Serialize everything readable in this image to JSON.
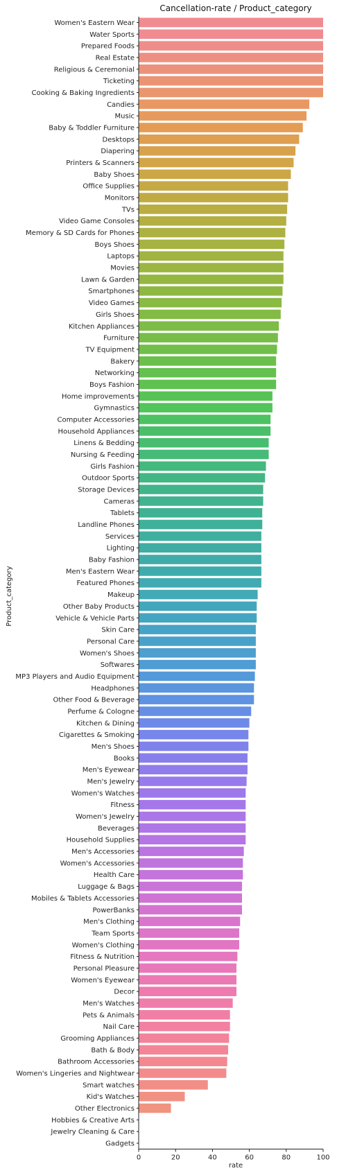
{
  "chart_data": {
    "type": "bar",
    "orientation": "horizontal",
    "title": "Cancellation-rate / Product_category",
    "xlabel": "rate",
    "ylabel": "Product_category",
    "xlim": [
      0,
      100
    ],
    "xticks": [
      0,
      20,
      40,
      60,
      80,
      100
    ],
    "grid": false,
    "categories": [
      "Women's Eastern Wear",
      "Water Sports",
      "Prepared Foods",
      "Real Estate",
      "Religious & Ceremonial",
      "Ticketing",
      "Cooking & Baking Ingredients",
      "Candies",
      "Music",
      "Baby & Toddler Furniture",
      "Desktops",
      "Diapering",
      "Printers & Scanners",
      "Baby Shoes",
      "Office Supplies",
      "Monitors",
      "TVs",
      "Video Game Consoles",
      "Memory & SD Cards for Phones",
      "Boys Shoes",
      "Laptops",
      "Movies",
      "Lawn & Garden",
      "Smartphones",
      "Video Games",
      "Girls Shoes",
      "Kitchen Appliances",
      "Furniture",
      "TV Equipment",
      "Bakery",
      "Networking",
      "Boys Fashion",
      "Home improvements",
      "Gymnastics",
      "Computer Accessories",
      "Household Appliances",
      "Linens & Bedding",
      "Nursing & Feeding",
      "Girls Fashion",
      "Outdoor Sports",
      "Storage Devices",
      "Cameras",
      "Tablets",
      "Landline Phones",
      "Services",
      "Lighting",
      "Baby Fashion",
      "Men's Eastern Wear",
      "Featured Phones",
      "Makeup",
      "Other Baby Products",
      "Vehicle & Vehicle Parts",
      "Skin Care",
      "Personal Care",
      "Women's Shoes",
      "Softwares",
      "MP3 Players and Audio Equipment",
      "Headphones",
      "Other Food & Beverage",
      "Perfume & Cologne",
      "Kitchen & Dining",
      "Cigarettes & Smoking",
      "Men's Shoes",
      "Books",
      "Men's Eyewear",
      "Men's Jewelry",
      "Women's Watches",
      "Fitness",
      "Women's Jewelry",
      "Beverages",
      "Household Supplies",
      "Men's Accessories",
      "Women's Accessories",
      "Health Care",
      "Luggage & Bags",
      "Mobiles & Tablets Accessories",
      "PowerBanks",
      "Men's Clothing",
      "Team Sports",
      "Women's Clothing",
      "Fitness & Nutrition",
      "Personal Pleasure",
      "Women's Eyewear",
      "Decor",
      "Men's Watches",
      "Pets & Animals",
      "Nail Care",
      "Grooming Appliances",
      "Bath & Body",
      "Bathroom Accessories",
      "Women's Lingeries and Nightwear",
      "Smart watches",
      "Kid's Watches",
      "Other Electronics",
      "Hobbies & Creative Arts",
      "Jewelry Cleaning & Care",
      "Gadgets"
    ],
    "values": [
      100,
      100,
      100,
      100,
      100,
      100,
      100,
      92.5,
      91,
      89,
      87,
      85,
      84,
      82.5,
      81,
      81,
      80.5,
      80,
      79.5,
      79,
      78.5,
      78.5,
      78.5,
      78,
      77.5,
      77,
      76,
      75.5,
      75,
      74.5,
      74.5,
      74.5,
      72.5,
      72.5,
      71.5,
      71.5,
      70.5,
      70.5,
      69,
      68.5,
      67.5,
      67.5,
      67,
      67,
      66.5,
      66.5,
      66.5,
      66.5,
      66.5,
      64.5,
      64,
      64,
      63.5,
      63.5,
      63.5,
      63.5,
      63,
      62.5,
      62.5,
      61,
      60,
      59.5,
      59.5,
      59,
      59,
      58.5,
      58,
      58,
      58,
      58,
      58,
      57,
      56.5,
      56.5,
      56,
      56,
      56,
      55,
      54.5,
      54.5,
      53.5,
      53,
      53,
      53,
      51,
      49.5,
      49.5,
      49,
      48.5,
      48,
      47.5,
      37.5,
      25,
      17.5,
      0,
      0,
      0
    ],
    "colors": [
      "#f08c91",
      "#f08c91",
      "#ef8d8a",
      "#ed9083",
      "#ec927c",
      "#eb9474",
      "#ea966d",
      "#e99864",
      "#e89a5c",
      "#e49c55",
      "#de9f50",
      "#d8a24c",
      "#d2a549",
      "#cca746",
      "#c6a944",
      "#c0ab43",
      "#baad42",
      "#b3af41",
      "#adb141",
      "#a7b341",
      "#a1b441",
      "#9bb642",
      "#95b742",
      "#8fb843",
      "#89ba44",
      "#83bb45",
      "#7dbc46",
      "#77bd48",
      "#71bf49",
      "#6bc04b",
      "#64c14d",
      "#5ec250",
      "#57c354",
      "#51c45a",
      "#4dc262",
      "#4abf69",
      "#47bd70",
      "#45bb77",
      "#43b97d",
      "#42b783",
      "#41b589",
      "#40b38f",
      "#3fb294",
      "#3fb09a",
      "#3faf9f",
      "#3fada4",
      "#40aca9",
      "#40abad",
      "#41aab2",
      "#42a9b7",
      "#43a7bb",
      "#45a5c0",
      "#47a3c5",
      "#49a1ca",
      "#4c9fcf",
      "#509cd4",
      "#5499d9",
      "#5996de",
      "#5f92e2",
      "#668ee5",
      "#6e8ae8",
      "#7786ea",
      "#8082eb",
      "#887fec",
      "#907cec",
      "#977aec",
      "#9e78eb",
      "#a477ea",
      "#aa76e8",
      "#b075e6",
      "#b575e4",
      "#bb74e1",
      "#c074de",
      "#c574db",
      "#ca74d8",
      "#cf74d4",
      "#d474d0",
      "#d975cc",
      "#dd75c8",
      "#e176c3",
      "#e577be",
      "#e878b9",
      "#eb79b4",
      "#ee7aaf",
      "#f07caa",
      "#f17ea5",
      "#f280a0",
      "#f3839b",
      "#f38696",
      "#f38891",
      "#f38b8c",
      "#f28e88",
      "#f19184",
      "#f09480",
      "#ef977c",
      "#ee9a78",
      "#ed9d74"
    ]
  }
}
